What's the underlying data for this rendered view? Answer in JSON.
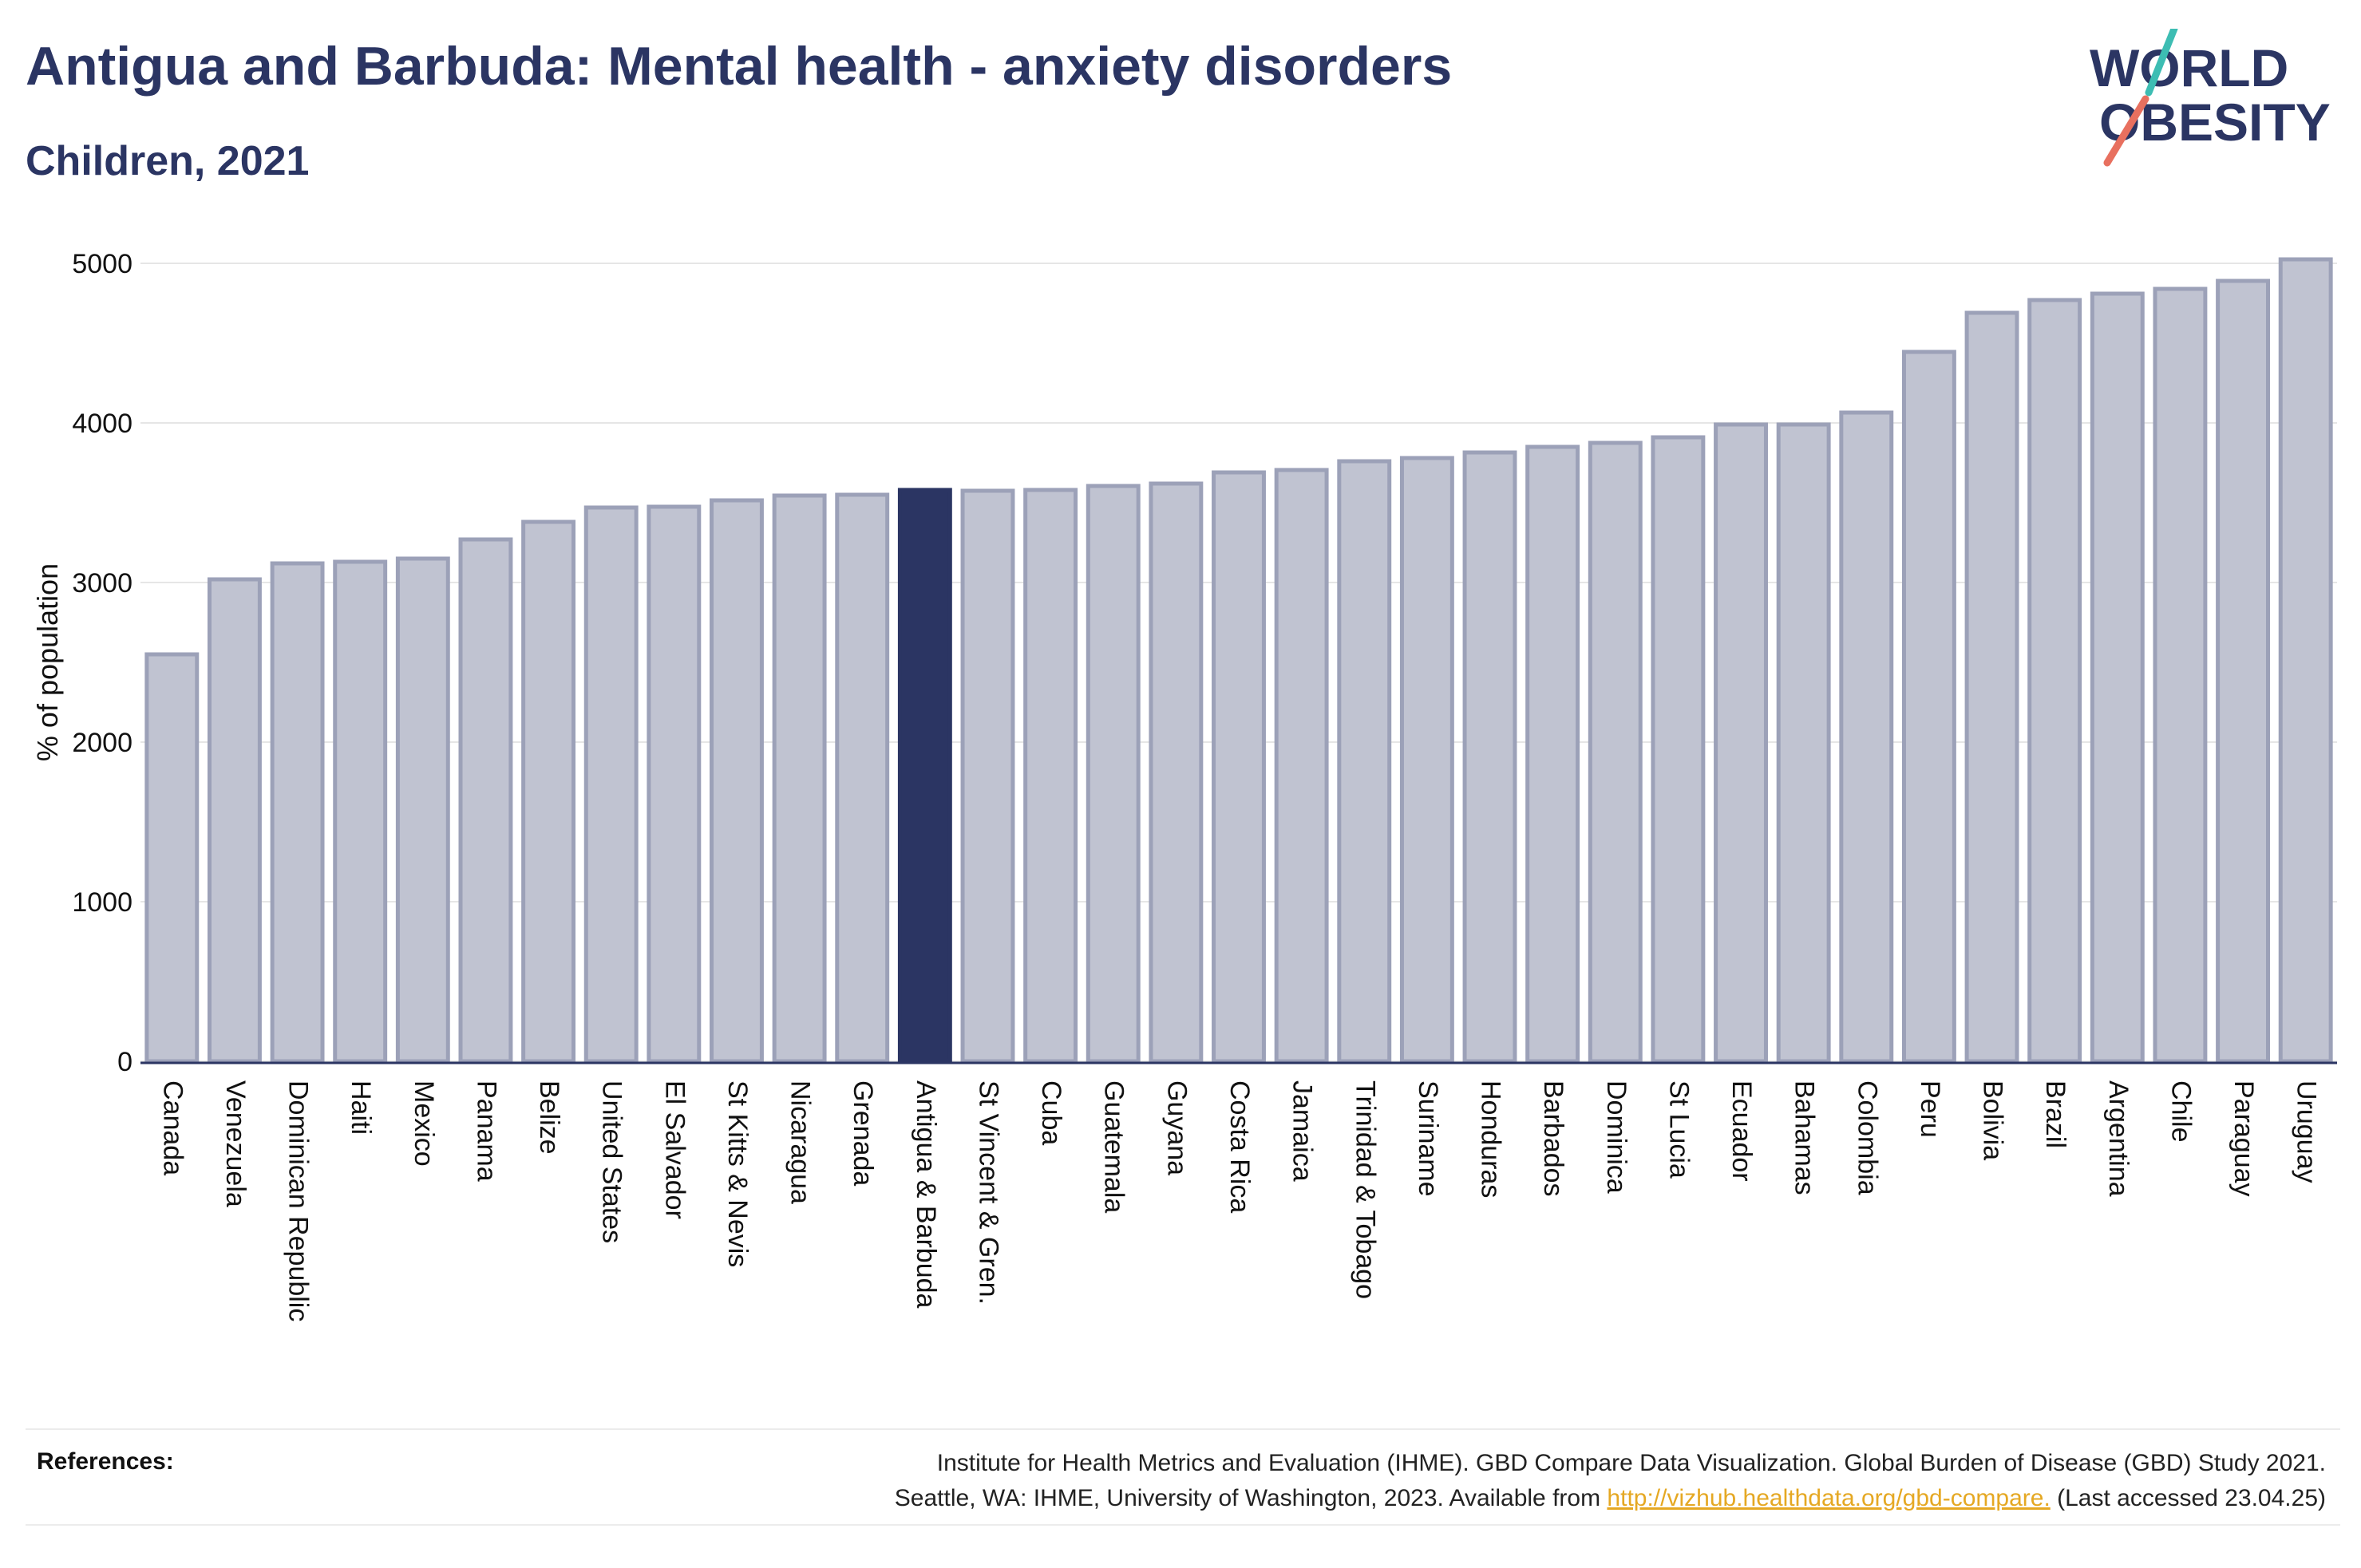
{
  "header": {
    "title": "Antigua and Barbuda: Mental health - anxiety disorders",
    "subtitle": "Children, 2021"
  },
  "logo": {
    "line1": "WORLD",
    "line2": "OBESITY",
    "colors": {
      "text": "#2b3563",
      "slash_top": "#3dbdb3",
      "slash_bottom": "#e8705f"
    }
  },
  "colors": {
    "bar": "#c0c3d1",
    "bar_border": "#9ca1b8",
    "highlight": "#2b3563",
    "grid": "#e6e6e6",
    "axis": "#2b3563"
  },
  "chart_data": {
    "type": "bar",
    "categories": [
      "Canada",
      "Venezuela",
      "Dominican Republic",
      "Haiti",
      "Mexico",
      "Panama",
      "Belize",
      "United States",
      "El Salvador",
      "St Kitts & Nevis",
      "Nicaragua",
      "Grenada",
      "Antigua & Barbuda",
      "St Vincent & Gren.",
      "Cuba",
      "Guatemala",
      "Guyana",
      "Costa Rica",
      "Jamaica",
      "Trinidad & Tobago",
      "Suriname",
      "Honduras",
      "Barbados",
      "Dominica",
      "St Lucia",
      "Ecuador",
      "Bahamas",
      "Colombia",
      "Peru",
      "Bolivia",
      "Brazil",
      "Argentina",
      "Chile",
      "Paraguay",
      "Uruguay"
    ],
    "values": [
      2550,
      3020,
      3120,
      3130,
      3150,
      3270,
      3380,
      3470,
      3475,
      3515,
      3545,
      3550,
      3580,
      3575,
      3580,
      3605,
      3620,
      3690,
      3705,
      3760,
      3780,
      3815,
      3850,
      3875,
      3910,
      3990,
      3990,
      4065,
      4445,
      4690,
      4770,
      4810,
      4840,
      4890,
      5025
    ],
    "highlight": "Antigua & Barbuda",
    "ylabel": "% of population",
    "xlabel": "",
    "ylim": [
      0,
      5000
    ],
    "yticks": [
      0,
      1000,
      2000,
      3000,
      4000,
      5000
    ],
    "grid": true,
    "legend": "none"
  },
  "references": {
    "label": "References:",
    "line1": "Institute for Health Metrics and Evaluation (IHME). GBD Compare Data Visualization. Global Burden of Disease (GBD) Study 2021.",
    "line2_pre": "Seattle, WA: IHME, University of Washington, 2023. Available from",
    "link": "http://vizhub.healthdata.org/gbd-compare.",
    "line2_post": "(Last accessed 23.04.25)"
  }
}
